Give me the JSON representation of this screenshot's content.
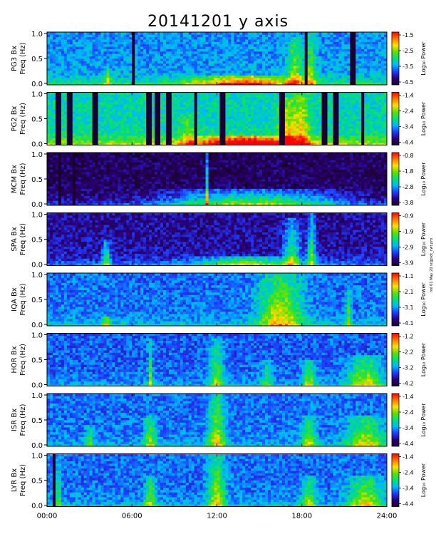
{
  "title": "20141201 y axis",
  "stamp": "nnl 01 May 20 scgplot_cwt.pro",
  "colorbar_label": "Log₁₀ Power",
  "x_tick_labels": [
    "00:00",
    "06:00",
    "12:00",
    "18:00",
    "24:00"
  ],
  "y_tick_labels": [
    "0.0",
    "0.5",
    "1.0"
  ],
  "colormap": [
    "#1a0030",
    "#2a007a",
    "#1f3cff",
    "#00b8ff",
    "#00e07a",
    "#5fe000",
    "#ffe000",
    "#ff7a00",
    "#ff0000"
  ],
  "chart_data": {
    "type": "heatmap",
    "title": "20141201 y axis",
    "x_unit": "UT hours",
    "xlim": [
      0,
      24
    ],
    "ylim": [
      0,
      1.0
    ],
    "panels": [
      {
        "id": "pg3",
        "label_line1": "PG3 Bx",
        "label_line2": "Freq (Hz)",
        "cbar": [
          "-1.5",
          "-2.5",
          "-3.5",
          "-4.5"
        ],
        "base": 0.22,
        "bg": 0.34,
        "bursts": [
          [
            4.3,
            0.2,
            0.3,
            0.35
          ],
          [
            14.0,
            3.5,
            0.18,
            0.55
          ],
          [
            17.5,
            0.5,
            0.9,
            0.35
          ],
          [
            18.6,
            0.4,
            1.0,
            0.3
          ]
        ],
        "lines": [
          6.1,
          18.3,
          21.6
        ]
      },
      {
        "id": "pg2",
        "label_line1": "PG2 Bx",
        "label_line2": "Freq (Hz)",
        "cbar": [
          "-1.4",
          "-2.4",
          "-3.4",
          "-4.4"
        ],
        "base": 0.28,
        "bg": 0.45,
        "bursts": [
          [
            14.0,
            3.5,
            0.2,
            0.6
          ],
          [
            17.0,
            0.6,
            0.9,
            0.35
          ],
          [
            18.0,
            0.5,
            1.0,
            0.35
          ],
          [
            10.0,
            0.5,
            0.6,
            0.2
          ]
        ],
        "lines": [
          0.8,
          1.6,
          3.4,
          7.2,
          7.8,
          8.6,
          10.5,
          12.4,
          16.6,
          19.6,
          20.4,
          22.3
        ]
      },
      {
        "id": "mcm",
        "label_line1": "MCM Bx",
        "label_line2": "Freq (Hz)",
        "cbar": [
          "-0.8",
          "-1.8",
          "-2.8",
          "-3.8"
        ],
        "base": 0.18,
        "bg": 0.08,
        "bursts": [
          [
            11.3,
            0.1,
            1.0,
            0.45
          ],
          [
            12.0,
            4.0,
            0.3,
            0.35
          ],
          [
            17.0,
            4.0,
            0.3,
            0.35
          ]
        ],
        "lines": [
          0.9,
          1.9
        ]
      },
      {
        "id": "spa",
        "label_line1": "SPA Bx",
        "label_line2": "Freq (Hz)",
        "cbar": [
          "-0.9",
          "-1.9",
          "-2.9",
          "-3.9"
        ],
        "base": 0.2,
        "bg": 0.15,
        "bursts": [
          [
            4.2,
            0.3,
            0.5,
            0.4
          ],
          [
            14.0,
            3.0,
            0.2,
            0.45
          ],
          [
            17.3,
            0.6,
            0.9,
            0.4
          ],
          [
            18.7,
            0.3,
            1.0,
            0.45
          ]
        ],
        "lines": []
      },
      {
        "id": "iqa",
        "label_line1": "IQA Bx",
        "label_line2": "Freq (Hz)",
        "cbar": [
          "-1.1",
          "-2.1",
          "-3.1",
          "-4.1"
        ],
        "base": 0.15,
        "bg": 0.3,
        "bursts": [
          [
            4.2,
            0.3,
            0.2,
            0.4
          ],
          [
            16.5,
            1.5,
            1.0,
            0.45
          ],
          [
            21.3,
            0.2,
            0.7,
            0.3
          ]
        ],
        "lines": []
      },
      {
        "id": "hor",
        "label_line1": "HOR Bx",
        "label_line2": "Freq (Hz)",
        "cbar": [
          "-1.2",
          "-2.2",
          "-3.2",
          "-4.2"
        ],
        "base": 0.12,
        "bg": 0.28,
        "bursts": [
          [
            7.3,
            0.15,
            0.9,
            0.35
          ],
          [
            12.0,
            0.5,
            0.9,
            0.35
          ],
          [
            18.5,
            0.5,
            0.5,
            0.35
          ],
          [
            22.5,
            1.2,
            0.6,
            0.4
          ],
          [
            15.5,
            0.4,
            0.5,
            0.25
          ]
        ],
        "lines": []
      },
      {
        "id": "isr",
        "label_line1": "ISR Bx",
        "label_line2": "Freq (Hz)",
        "cbar": [
          "-1.4",
          "-2.4",
          "-3.4",
          "-4.4"
        ],
        "base": 0.12,
        "bg": 0.3,
        "bursts": [
          [
            7.3,
            0.4,
            0.6,
            0.35
          ],
          [
            12.0,
            0.6,
            1.0,
            0.4
          ],
          [
            18.5,
            0.5,
            0.6,
            0.35
          ],
          [
            22.5,
            1.2,
            0.6,
            0.4
          ],
          [
            3.0,
            0.3,
            0.4,
            0.25
          ]
        ],
        "lines": []
      },
      {
        "id": "lyr",
        "label_line1": "LYR Bx",
        "label_line2": "Freq (Hz)",
        "cbar": [
          "-1.4",
          "-2.4",
          "-3.4",
          "-4.4"
        ],
        "base": 0.12,
        "bg": 0.3,
        "bursts": [
          [
            0.8,
            0.1,
            1.0,
            0.5
          ],
          [
            7.3,
            0.4,
            0.6,
            0.35
          ],
          [
            12.0,
            0.6,
            1.0,
            0.4
          ],
          [
            18.5,
            0.5,
            0.6,
            0.35
          ],
          [
            22.5,
            1.2,
            0.6,
            0.4
          ]
        ],
        "lines": [
          0.55
        ]
      }
    ]
  }
}
